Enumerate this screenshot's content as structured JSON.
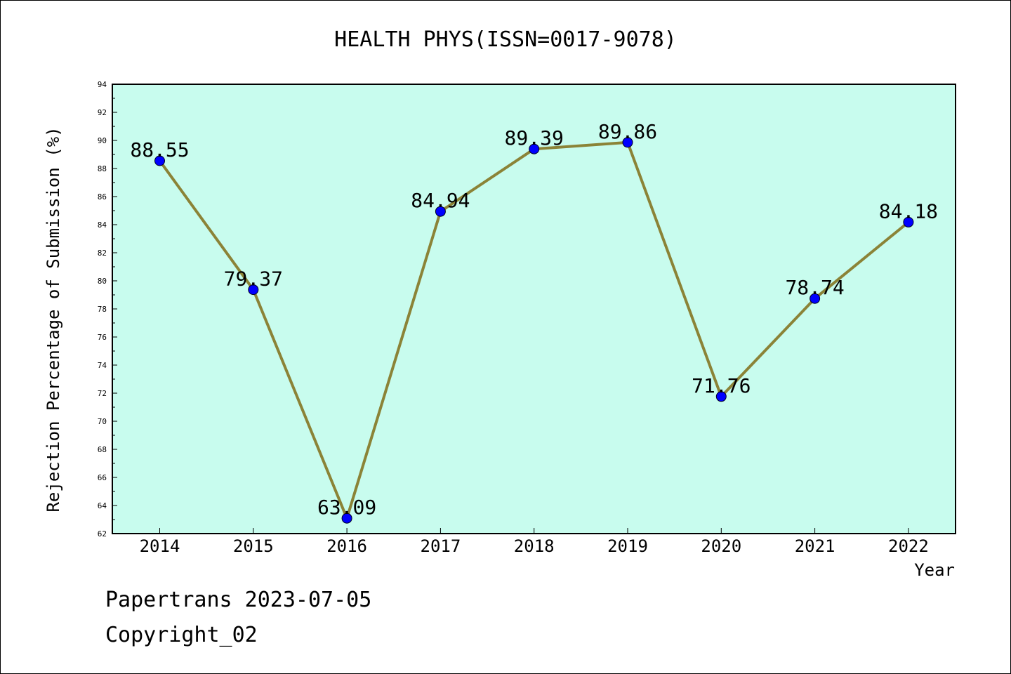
{
  "chart_data": {
    "type": "line",
    "title": "HEALTH PHYS(ISSN=0017-9078)",
    "xlabel": "Year",
    "ylabel": "Rejection Percentage of Submission (%)",
    "categories": [
      "2014",
      "2015",
      "2016",
      "2017",
      "2018",
      "2019",
      "2020",
      "2021",
      "2022"
    ],
    "values": [
      88.55,
      79.37,
      63.09,
      84.94,
      89.39,
      89.86,
      71.76,
      78.74,
      84.18
    ],
    "data_labels": [
      "88.55",
      "79.37",
      "63.09",
      "84.94",
      "89.39",
      "89.86",
      "71.76",
      "78.74",
      "84.18"
    ],
    "ylim": [
      62,
      94
    ],
    "yticks": [
      "62",
      "64",
      "66",
      "68",
      "70",
      "72",
      "74",
      "76",
      "78",
      "80",
      "82",
      "84",
      "86",
      "88",
      "90",
      "92",
      "94"
    ],
    "grid": false,
    "colors": {
      "plot_background": "#c8fcee",
      "line": "#8b8337",
      "marker": "#0000ff"
    }
  },
  "footer": {
    "line1": "Papertrans 2023-07-05",
    "line2": "Copyright_02"
  }
}
